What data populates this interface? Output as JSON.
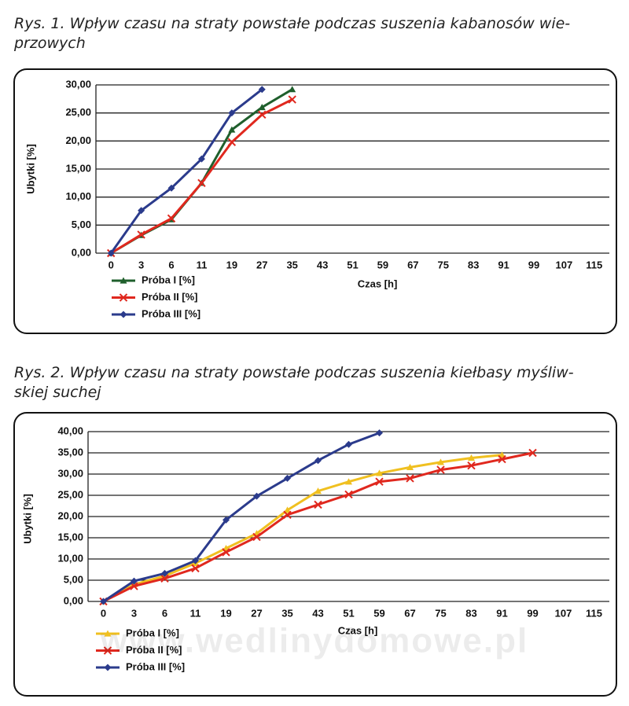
{
  "chart_data": [
    {
      "type": "line",
      "title": "Rys. 1. Wpływ czasu na straty powstałe podczas suszenia kabanosów wie-\nprzowych",
      "x_label": "Czas [h]",
      "y_label": "Ubytki [%]",
      "categories": [
        "0",
        "3",
        "6",
        "11",
        "19",
        "27",
        "35",
        "43",
        "51",
        "59",
        "67",
        "75",
        "83",
        "91",
        "99",
        "107",
        "115"
      ],
      "series": [
        {
          "name": "Próba I [%]",
          "color": "#1f5f2c",
          "values": [
            0,
            3.2,
            6.0,
            12.5,
            22.0,
            26.0,
            29.2,
            null,
            null,
            null,
            null,
            null,
            null,
            null,
            null,
            null,
            null
          ]
        },
        {
          "name": "Próba II [%]",
          "color": "#e0281e",
          "values": [
            0,
            3.3,
            6.2,
            12.5,
            19.8,
            24.7,
            27.4,
            null,
            null,
            null,
            null,
            null,
            null,
            null,
            null,
            null,
            null
          ]
        },
        {
          "name": "Próba III [%]",
          "color": "#2b3b8c",
          "values": [
            0,
            7.6,
            11.6,
            16.8,
            25.0,
            29.2,
            null,
            null,
            null,
            null,
            null,
            null,
            null,
            null,
            null,
            null,
            null
          ]
        }
      ],
      "ylim": [
        0,
        30
      ],
      "yticks": [
        {
          "value": 0,
          "label": "0,00"
        },
        {
          "value": 5,
          "label": "5,00"
        },
        {
          "value": 10,
          "label": "10,00"
        },
        {
          "value": 15,
          "label": "15,00"
        },
        {
          "value": 20,
          "label": "20,00"
        },
        {
          "value": 25,
          "label": "25,00"
        },
        {
          "value": 30,
          "label": "30,00"
        }
      ],
      "grid": true,
      "legend": "bottom-left"
    },
    {
      "type": "line",
      "title": "Rys. 2. Wpływ czasu na straty powstałe podczas suszenia kiełbasy myśliw-\nskiej suchej",
      "x_label": "Czas [h]",
      "y_label": "Ubytki [%]",
      "categories": [
        "0",
        "3",
        "6",
        "11",
        "19",
        "27",
        "35",
        "43",
        "51",
        "59",
        "67",
        "75",
        "83",
        "91",
        "99",
        "107",
        "115"
      ],
      "series": [
        {
          "name": "Próba I [%]",
          "color": "#f0c020",
          "values": [
            0,
            4.0,
            6.0,
            9.0,
            12.5,
            16.0,
            21.5,
            26.0,
            28.2,
            30.2,
            31.6,
            32.8,
            33.8,
            34.5,
            null,
            null,
            null
          ]
        },
        {
          "name": "Próba II [%]",
          "color": "#e0281e",
          "values": [
            0,
            3.6,
            5.4,
            7.8,
            11.6,
            15.2,
            20.4,
            22.8,
            25.2,
            28.2,
            29.0,
            31.0,
            32.0,
            33.5,
            35.0,
            null,
            null
          ]
        },
        {
          "name": "Próba III [%]",
          "color": "#2b3b8c",
          "values": [
            0,
            4.8,
            6.6,
            9.6,
            19.2,
            24.8,
            29.0,
            33.2,
            37.0,
            39.7,
            null,
            null,
            null,
            null,
            null,
            null,
            null
          ]
        }
      ],
      "ylim": [
        0,
        40
      ],
      "yticks": [
        {
          "value": 0,
          "label": "0,00"
        },
        {
          "value": 5,
          "label": "5,00"
        },
        {
          "value": 10,
          "label": "10,00"
        },
        {
          "value": 15,
          "label": "15,00"
        },
        {
          "value": 20,
          "label": "20,00"
        },
        {
          "value": 25,
          "label": "25,00"
        },
        {
          "value": 30,
          "label": "30,00"
        },
        {
          "value": 35,
          "label": "35,00"
        },
        {
          "value": 40,
          "label": "40,00"
        }
      ],
      "grid": true,
      "legend": "bottom-left",
      "watermark": "www.wedlinydomowe.pl"
    }
  ]
}
